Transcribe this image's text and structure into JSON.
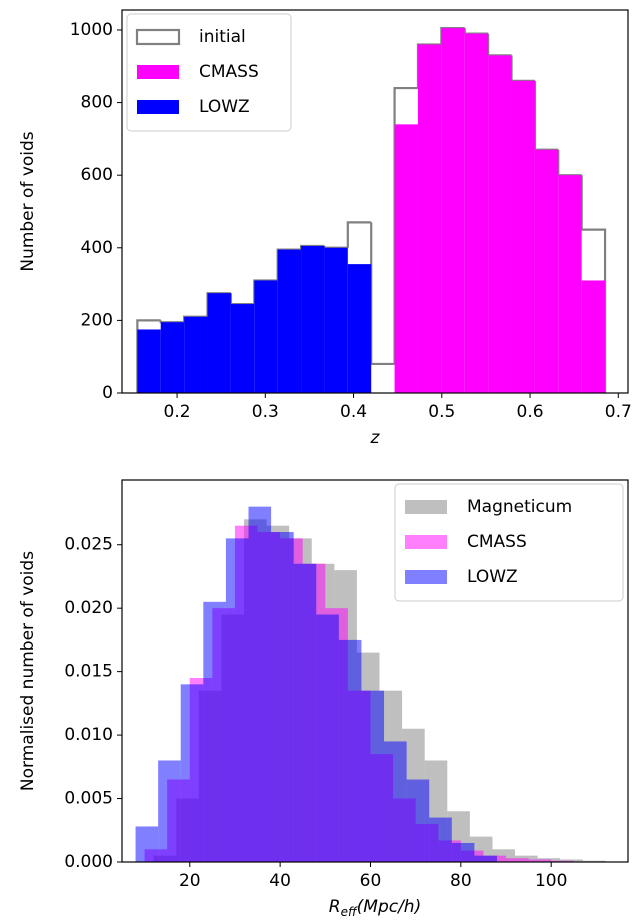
{
  "chart_data": [
    {
      "type": "histogram",
      "xlabel": "z",
      "ylabel": "Number of voids",
      "xlim": [
        0.1376,
        0.711
      ],
      "ylim": [
        0,
        1055
      ],
      "xticks": [
        0.2,
        0.3,
        0.4,
        0.5,
        0.6,
        0.7
      ],
      "yticks": [
        0,
        200,
        400,
        600,
        800,
        1000
      ],
      "legend": "upper left",
      "series": [
        {
          "name": "initial",
          "color": "#808080",
          "style": "step",
          "bins": [
            0.155,
            0.1815,
            0.208,
            0.2345,
            0.261,
            0.2875,
            0.314,
            0.3405,
            0.367,
            0.3935,
            0.42,
            0.4465,
            0.473,
            0.4995,
            0.526,
            0.5525,
            0.579,
            0.6055,
            0.632,
            0.6585,
            0.685
          ],
          "values": [
            200,
            195,
            210,
            275,
            245,
            310,
            395,
            405,
            400,
            470,
            80,
            840,
            960,
            1005,
            990,
            930,
            860,
            670,
            600,
            450
          ]
        },
        {
          "name": "CMASS",
          "color": "#ff00ff",
          "style": "filled",
          "bins": [
            0.4465,
            0.473,
            0.4995,
            0.526,
            0.5525,
            0.579,
            0.6055,
            0.632,
            0.6585,
            0.685
          ],
          "values": [
            740,
            960,
            1005,
            990,
            930,
            860,
            670,
            600,
            310
          ]
        },
        {
          "name": "LOWZ",
          "color": "#0000ff",
          "style": "filled",
          "bins": [
            0.155,
            0.1815,
            0.208,
            0.2345,
            0.261,
            0.2875,
            0.314,
            0.3405,
            0.367,
            0.3935,
            0.42
          ],
          "values": [
            175,
            195,
            210,
            275,
            245,
            310,
            395,
            405,
            400,
            355
          ]
        }
      ]
    },
    {
      "type": "histogram",
      "xlabel": [
        "R",
        "eff",
        "(Mpc/h)"
      ],
      "ylabel": "Normalised number of voids",
      "xlim": [
        5,
        117
      ],
      "ylim": [
        0,
        0.0301
      ],
      "xticks": [
        20,
        40,
        60,
        80,
        100
      ],
      "yticks": [
        {
          "value": 0,
          "label": "0.000"
        },
        {
          "value": 0.005,
          "label": "0.005"
        },
        {
          "value": 0.01,
          "label": "0.010"
        },
        {
          "value": 0.015,
          "label": "0.015"
        },
        {
          "value": 0.02,
          "label": "0.020"
        },
        {
          "value": 0.025,
          "label": "0.025"
        }
      ],
      "legend": "upper right",
      "alpha": 0.5,
      "series": [
        {
          "name": "Magneticum",
          "color": "#808080",
          "style": "filled",
          "bins": [
            12,
            17,
            22,
            27,
            32,
            37,
            42,
            47,
            52,
            57,
            62,
            67,
            72,
            77,
            82,
            87,
            92,
            97,
            102,
            107,
            112
          ],
          "values": [
            0.0005,
            0.005,
            0.0135,
            0.0195,
            0.027,
            0.0265,
            0.0255,
            0.0235,
            0.023,
            0.0165,
            0.0135,
            0.0105,
            0.008,
            0.004,
            0.002,
            0.001,
            0.0005,
            0.0003,
            0.0002,
            0.0001
          ]
        },
        {
          "name": "CMASS",
          "color": "#ff00ff",
          "style": "filled",
          "bins": [
            10,
            15,
            20,
            25,
            30,
            35,
            40,
            45,
            50,
            55,
            60,
            65,
            70,
            75,
            80,
            85,
            90,
            95,
            100,
            105
          ],
          "values": [
            0.001,
            0.0065,
            0.0145,
            0.02,
            0.0265,
            0.026,
            0.0255,
            0.0235,
            0.02,
            0.0135,
            0.0085,
            0.005,
            0.003,
            0.0017,
            0.0009,
            0.0005,
            0.0003,
            0.0002,
            0.0001
          ]
        },
        {
          "name": "LOWZ",
          "color": "#0000ff",
          "style": "filled",
          "bins": [
            8,
            13,
            18,
            23,
            28,
            33,
            38,
            43,
            48,
            53,
            58,
            63,
            68,
            73,
            78,
            83,
            88
          ],
          "values": [
            0.0028,
            0.008,
            0.014,
            0.0205,
            0.0255,
            0.028,
            0.026,
            0.0235,
            0.0195,
            0.0175,
            0.0135,
            0.0095,
            0.0065,
            0.0035,
            0.0015,
            0.0005
          ]
        }
      ]
    }
  ]
}
